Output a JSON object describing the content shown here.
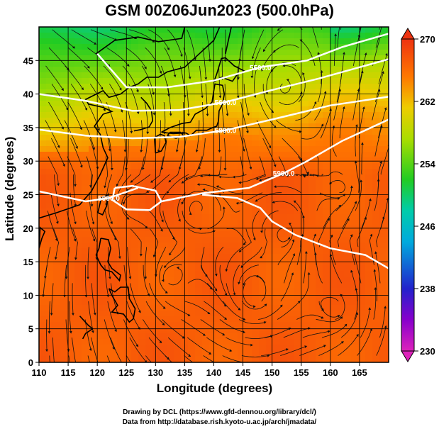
{
  "title": "GSM 00Z06Jun2023 (500.0hPa)",
  "xlabel": "Longitude (degrees)",
  "ylabel": "Latitude  (degrees)",
  "credit_line1": "Drawing by DCL (https://www.gfd-dennou.org/library/dcl/)",
  "credit_line2": "Data from http://database.rish.kyoto-u.ac.jp/arch/jmadata/",
  "chart_data": {
    "type": "heatmap",
    "xlim": [
      110,
      170
    ],
    "ylim": [
      0,
      50
    ],
    "x_ticks": [
      110,
      115,
      120,
      125,
      130,
      135,
      140,
      145,
      150,
      155,
      160,
      165
    ],
    "y_ticks": [
      0,
      5,
      10,
      15,
      20,
      25,
      30,
      35,
      40,
      45
    ],
    "grid": true,
    "colorbar": {
      "min": 230,
      "max": 270,
      "ticks": [
        230,
        238,
        246,
        254,
        262,
        270
      ],
      "colors": [
        "#dd22bb",
        "#8800cc",
        "#2222cc",
        "#00aadd",
        "#00ccaa",
        "#22cc22",
        "#aadd00",
        "#eecc00",
        "#ff7700",
        "#ee3311"
      ]
    },
    "contour_labels": [
      "5500.0",
      "5600.0",
      "5800.0",
      "5900.0",
      "5900.0"
    ],
    "height_contours": [
      {
        "label": "5500.0",
        "points": [
          [
            120,
            46
          ],
          [
            125,
            41
          ],
          [
            132,
            41
          ],
          [
            140,
            42
          ],
          [
            148,
            44
          ],
          [
            156,
            45
          ],
          [
            162,
            47
          ],
          [
            170,
            49
          ]
        ]
      },
      {
        "label": "5600.0",
        "points": [
          [
            110,
            40
          ],
          [
            118,
            39
          ],
          [
            126,
            37.5
          ],
          [
            134,
            37.6
          ],
          [
            142,
            38.8
          ],
          [
            150,
            40.6
          ],
          [
            158,
            42.3
          ],
          [
            170,
            45.2
          ]
        ]
      },
      {
        "label": "5800.0",
        "points": [
          [
            110,
            34.7
          ],
          [
            118,
            33.8
          ],
          [
            126,
            33.4
          ],
          [
            134,
            33.6
          ],
          [
            142,
            34.6
          ],
          [
            150,
            36.2
          ],
          [
            160,
            38.3
          ],
          [
            170,
            39.6
          ]
        ]
      },
      {
        "label": "5900.0",
        "points": [
          [
            131,
            24
          ],
          [
            138,
            25.2
          ],
          [
            146,
            26
          ],
          [
            152,
            28.2
          ],
          [
            156,
            30
          ],
          [
            162,
            33
          ],
          [
            170,
            36.2
          ]
        ]
      },
      {
        "label": "5900.0",
        "points": [
          [
            110,
            25.5
          ],
          [
            118,
            24
          ],
          [
            122,
            24.5
          ],
          [
            127,
            26
          ]
        ]
      },
      {
        "label": "",
        "points": [
          [
            138,
            25
          ],
          [
            144,
            24.5
          ],
          [
            148,
            23
          ],
          [
            150,
            21
          ],
          [
            154,
            19
          ],
          [
            160,
            17
          ],
          [
            166,
            16
          ],
          [
            170,
            14
          ]
        ]
      },
      {
        "label": "",
        "points": [
          [
            123,
            26
          ],
          [
            126,
            26.3
          ],
          [
            130,
            25.6
          ],
          [
            131,
            24
          ],
          [
            129,
            22.7
          ],
          [
            125,
            22.8
          ],
          [
            122.6,
            24.2
          ],
          [
            123,
            26
          ]
        ]
      }
    ],
    "circulation_centers": [
      {
        "lon": 125.5,
        "lat": 23.5
      },
      {
        "lon": 132.5,
        "lat": 12.5
      },
      {
        "lon": 152.0,
        "lat": 19.0
      },
      {
        "lon": 147.0,
        "lat": 10.0
      },
      {
        "lon": 161.0,
        "lat": 8.0
      },
      {
        "lon": 162.0,
        "lat": 26.0
      },
      {
        "lon": 152.0,
        "lat": 41.0
      },
      {
        "lon": 137.0,
        "lat": 23.0
      }
    ]
  }
}
